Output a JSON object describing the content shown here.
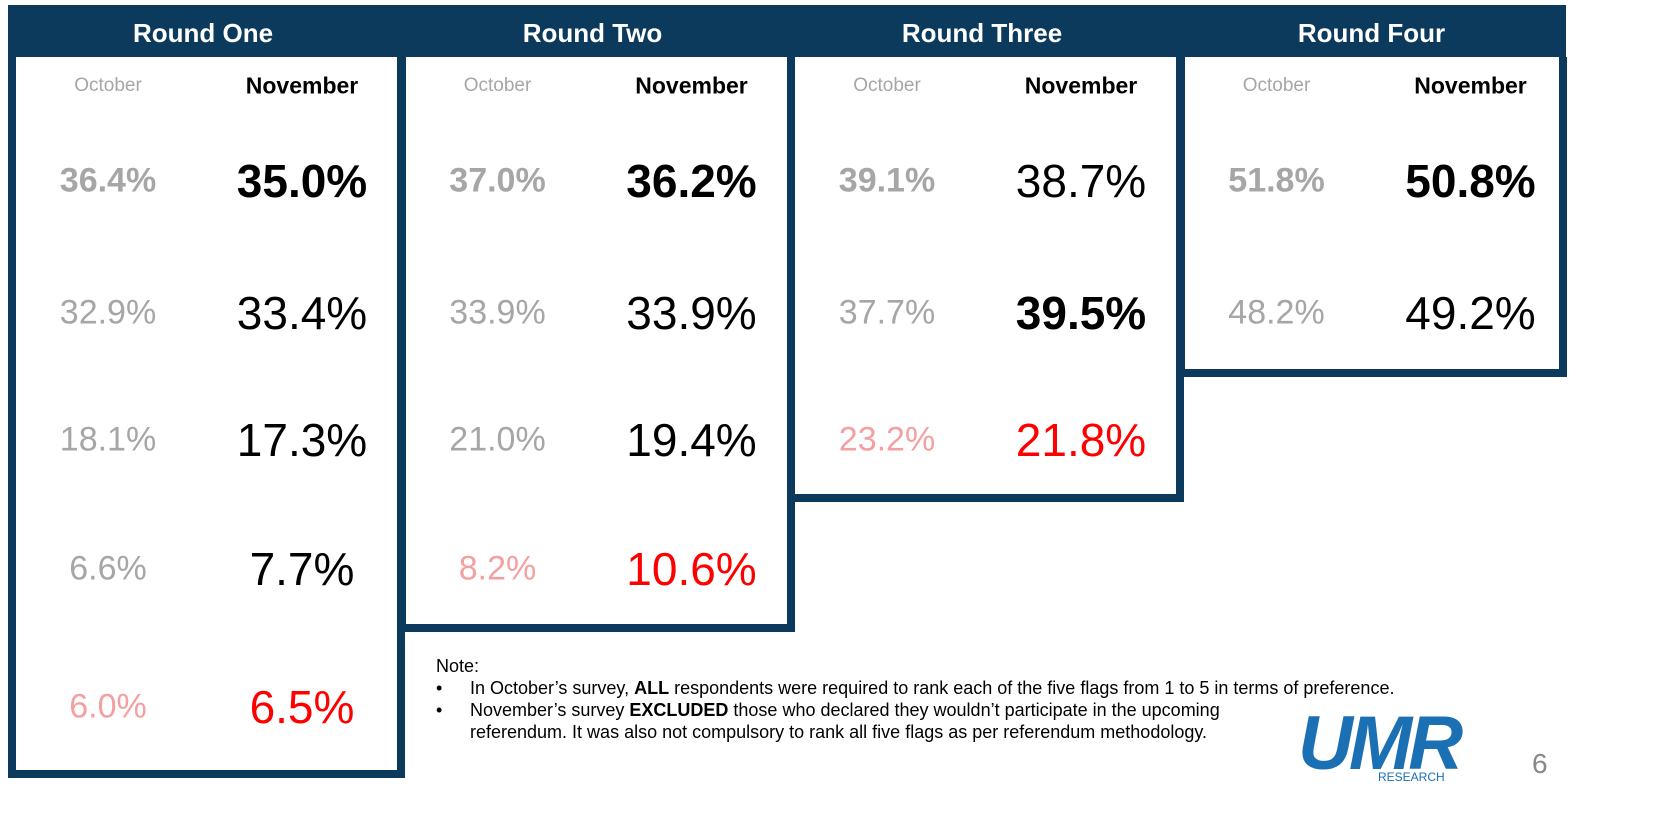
{
  "rounds": [
    {
      "title": "Round One",
      "columns": [
        "October",
        "November"
      ],
      "rows": [
        [
          {
            "text": "36.4%",
            "bold": true
          },
          {
            "text": "35.0%",
            "bold": true
          }
        ],
        [
          {
            "text": "32.9%"
          },
          {
            "text": "33.4%"
          }
        ],
        [
          {
            "text": "18.1%"
          },
          {
            "text": "17.3%"
          }
        ],
        [
          {
            "text": "6.6%"
          },
          {
            "text": "7.7%"
          }
        ],
        [
          {
            "text": "6.0%",
            "red": true
          },
          {
            "text": "6.5%",
            "red": true
          }
        ]
      ]
    },
    {
      "title": "Round Two",
      "columns": [
        "October",
        "November"
      ],
      "rows": [
        [
          {
            "text": "37.0%",
            "bold": true
          },
          {
            "text": "36.2%",
            "bold": true
          }
        ],
        [
          {
            "text": "33.9%"
          },
          {
            "text": "33.9%"
          }
        ],
        [
          {
            "text": "21.0%"
          },
          {
            "text": "19.4%"
          }
        ],
        [
          {
            "text": "8.2%",
            "red": true
          },
          {
            "text": "10.6%",
            "red": true
          }
        ]
      ]
    },
    {
      "title": "Round Three",
      "columns": [
        "October",
        "November"
      ],
      "rows": [
        [
          {
            "text": "39.1%",
            "bold": true
          },
          {
            "text": "38.7%"
          }
        ],
        [
          {
            "text": "37.7%"
          },
          {
            "text": "39.5%",
            "bold": true
          }
        ],
        [
          {
            "text": "23.2%",
            "red": true
          },
          {
            "text": "21.8%",
            "red": true
          }
        ]
      ]
    },
    {
      "title": "Round Four",
      "columns": [
        "October",
        "November"
      ],
      "rows": [
        [
          {
            "text": "51.8%",
            "bold": true
          },
          {
            "text": "50.8%",
            "bold": true
          }
        ],
        [
          {
            "text": "48.2%"
          },
          {
            "text": "49.2%"
          }
        ]
      ]
    }
  ],
  "note": {
    "label": "Note:",
    "bullets": [
      [
        {
          "text": "In October’s survey, "
        },
        {
          "text": "ALL",
          "bold": true
        },
        {
          "text": " respondents were required to rank each of the five flags from 1 to 5 in terms of preference."
        }
      ],
      [
        {
          "text": "November’s survey "
        },
        {
          "text": "EXCLUDED",
          "bold": true
        },
        {
          "text": " those who declared they wouldn’t participate in the upcoming referendum. It was also not compulsory to rank all five flags as per referendum methodology."
        }
      ]
    ]
  },
  "logo": {
    "name": "UMR",
    "sub": "RESEARCH"
  },
  "page_number": "6"
}
